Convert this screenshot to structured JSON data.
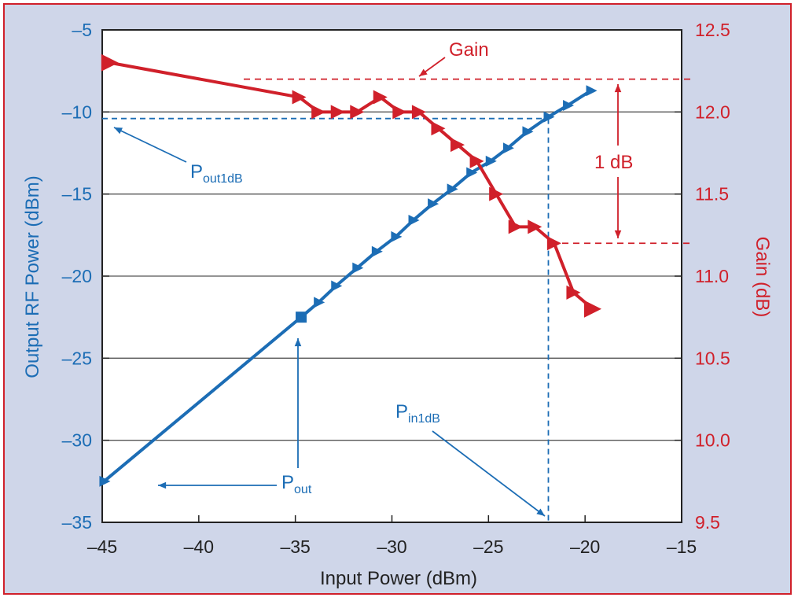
{
  "chart_data": {
    "type": "line",
    "xlabel": "Input Power (dBm)",
    "ylabel_left": "Output RF Power (dBm)",
    "ylabel_right": "Gain (dB)",
    "xlim": [
      -45,
      -15
    ],
    "ylim_left": [
      -35,
      -5
    ],
    "ylim_right": [
      9.5,
      12.5
    ],
    "x_ticks": [
      "–45",
      "–40",
      "–35",
      "–30",
      "–25",
      "–20",
      "–15"
    ],
    "y_left_ticks": [
      "–5",
      "–10",
      "–15",
      "–20",
      "–25",
      "–30",
      "–35"
    ],
    "y_right_ticks": [
      "12.5",
      "12.0",
      "11.5",
      "11.0",
      "10.5",
      "10.0",
      "9.5"
    ],
    "grid": "horizontal",
    "series": [
      {
        "axis": "left",
        "color": "#1c6db5",
        "x": [
          -44.9,
          -34.7,
          -33.8,
          -32.9,
          -31.8,
          -30.8,
          -29.8,
          -28.9,
          -27.9,
          -26.9,
          -25.9,
          -24.9,
          -24.0,
          -23.0,
          -21.9,
          -20.9,
          -19.7
        ],
        "y": [
          -32.5,
          -22.5,
          -21.6,
          -20.6,
          -19.5,
          -18.5,
          -17.6,
          -16.6,
          -15.6,
          -14.7,
          -13.7,
          -13.0,
          -12.2,
          -11.2,
          -10.3,
          -9.6,
          -8.7
        ]
      },
      {
        "axis": "right",
        "color": "#d0202a",
        "x": [
          -44.6,
          -34.8,
          -33.8,
          -32.8,
          -31.8,
          -30.6,
          -29.6,
          -28.6,
          -27.6,
          -26.6,
          -25.6,
          -24.6,
          -23.6,
          -22.6,
          -21.6,
          -20.6,
          -19.6
        ],
        "y": [
          12.3,
          12.09,
          12.0,
          12.0,
          12.0,
          12.09,
          12.0,
          12.0,
          11.9,
          11.8,
          11.7,
          11.5,
          11.3,
          11.3,
          11.2,
          10.9,
          10.8
        ]
      }
    ],
    "annotations": {
      "gain": "Gain",
      "one_db": "1 dB",
      "pout1db_main": "P",
      "pout1db_sub": "out1dB",
      "pin1db_main": "P",
      "pin1db_sub": "in1dB",
      "pout_main": "P",
      "pout_sub": "out"
    },
    "reference_lines": {
      "pout1db_y": -10.4,
      "pin1db_x": -21.9,
      "gain_top": 12.2,
      "gain_bottom": 11.2
    }
  }
}
